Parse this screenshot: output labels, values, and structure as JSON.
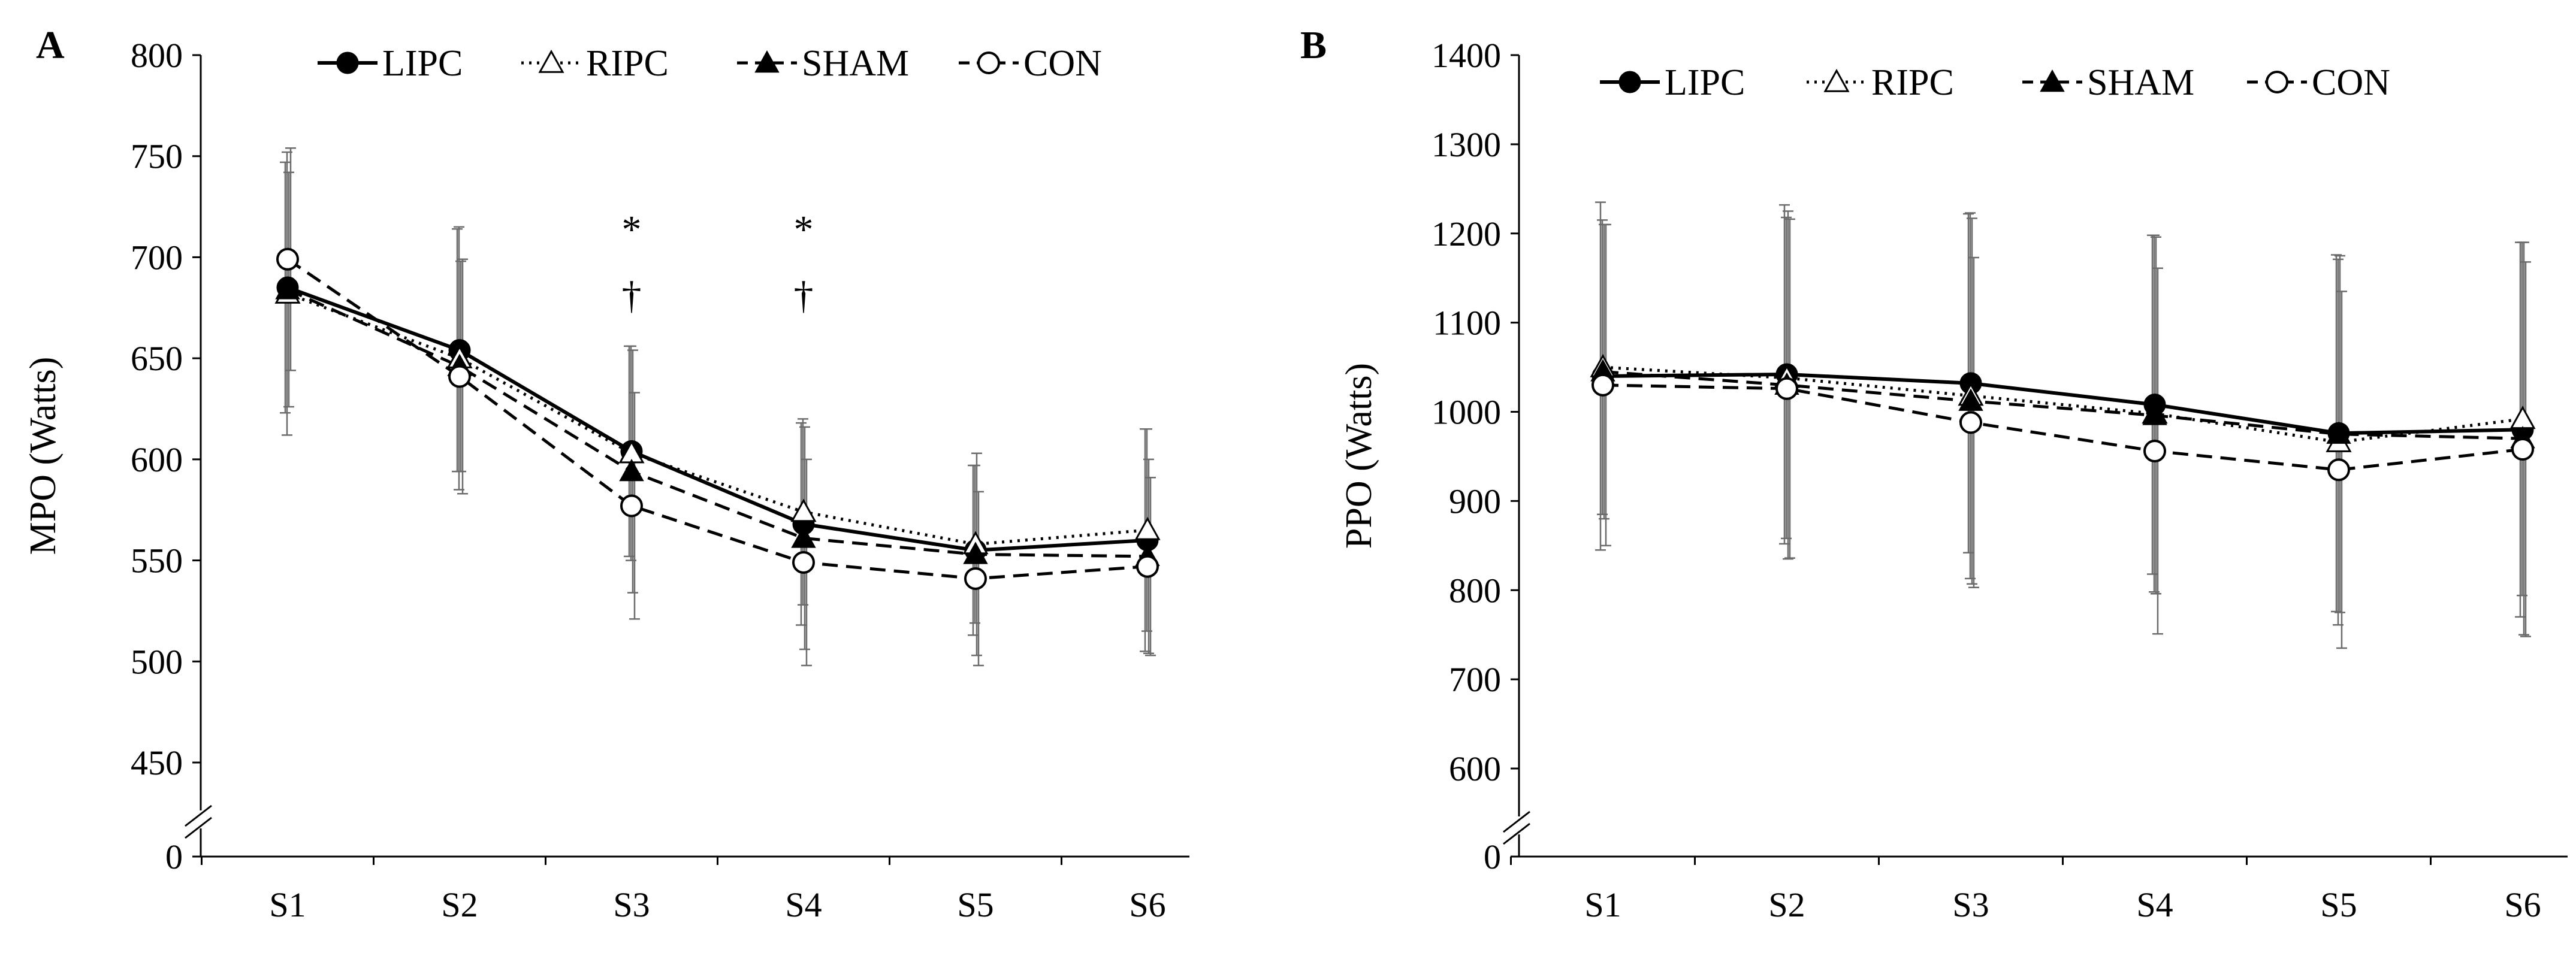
{
  "colors": {
    "ink": "#000000",
    "errorbar": "#6b6b6b",
    "background": "#ffffff"
  },
  "legend": [
    {
      "name": "LIPC",
      "marker": "filled-circle",
      "line": "solid"
    },
    {
      "name": "RIPC",
      "marker": "open-triangle",
      "line": "dotted"
    },
    {
      "name": "SHAM",
      "marker": "filled-triangle",
      "line": "dashed"
    },
    {
      "name": "CON",
      "marker": "open-circle",
      "line": "dashed"
    }
  ],
  "chart_data": [
    {
      "panel": "A",
      "type": "line",
      "title": "",
      "xlabel": "",
      "ylabel": "MPO (Watts)",
      "categories": [
        "S1",
        "S2",
        "S3",
        "S4",
        "S5",
        "S6"
      ],
      "ylim": [
        450,
        800
      ],
      "yticks": [
        450,
        500,
        550,
        600,
        650,
        700,
        750,
        800
      ],
      "axis_break": true,
      "zero_label": "0",
      "grid": false,
      "legend_position": "top",
      "series": [
        {
          "name": "LIPC",
          "values": [
            685,
            654,
            604,
            568,
            555,
            560
          ],
          "sd": [
            62,
            60,
            52,
            50,
            42,
            55
          ]
        },
        {
          "name": "RIPC",
          "values": [
            682,
            650,
            603,
            574,
            558,
            565
          ],
          "sd": [
            70,
            65,
            53,
            46,
            39,
            50
          ]
        },
        {
          "name": "SHAM",
          "values": [
            684,
            646,
            594,
            561,
            553,
            552
          ],
          "sd": [
            58,
            52,
            60,
            55,
            50,
            48
          ]
        },
        {
          "name": "CON",
          "values": [
            699,
            641,
            577,
            549,
            541,
            547
          ],
          "sd": [
            55,
            58,
            56,
            51,
            43,
            44
          ]
        }
      ],
      "annotations": [
        {
          "category": "S3",
          "symbols": [
            "*",
            "†"
          ]
        },
        {
          "category": "S4",
          "symbols": [
            "*",
            "†"
          ]
        }
      ]
    },
    {
      "panel": "B",
      "type": "line",
      "title": "",
      "xlabel": "",
      "ylabel": "PPO (Watts)",
      "categories": [
        "S1",
        "S2",
        "S3",
        "S4",
        "S5",
        "S6"
      ],
      "ylim": [
        600,
        1400
      ],
      "yticks": [
        600,
        700,
        800,
        900,
        1000,
        1100,
        1200,
        1300,
        1400
      ],
      "axis_break": true,
      "zero_label": "0",
      "grid": false,
      "legend_position": "top",
      "series": [
        {
          "name": "LIPC",
          "values": [
            1040,
            1042,
            1032,
            1008,
            976,
            980
          ],
          "sd": [
            195,
            190,
            190,
            190,
            200,
            210
          ]
        },
        {
          "name": "RIPC",
          "values": [
            1050,
            1038,
            1018,
            998,
            966,
            992
          ],
          "sd": [
            165,
            180,
            205,
            200,
            205,
            198
          ]
        },
        {
          "name": "SHAM",
          "values": [
            1045,
            1030,
            1012,
            996,
            975,
            970
          ],
          "sd": [
            165,
            195,
            205,
            200,
            200,
            220
          ]
        },
        {
          "name": "CON",
          "values": [
            1030,
            1026,
            988,
            956,
            935,
            958
          ],
          "sd": [
            180,
            190,
            185,
            205,
            200,
            210
          ]
        }
      ],
      "annotations": []
    }
  ]
}
